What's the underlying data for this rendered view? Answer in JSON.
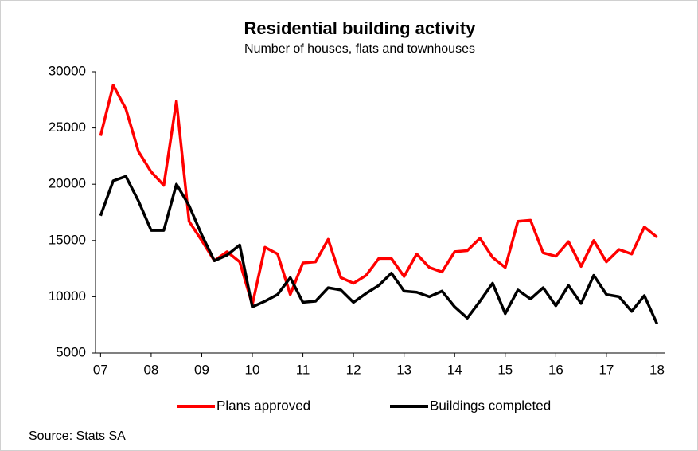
{
  "chart_data": {
    "type": "line",
    "title": "Residential building activity",
    "subtitle": "Number of houses, flats and townhouses",
    "source": "Source: Stats SA",
    "x": [
      2007,
      2007.25,
      2007.5,
      2007.75,
      2008,
      2008.25,
      2008.5,
      2008.75,
      2009,
      2009.25,
      2009.5,
      2009.75,
      2010,
      2010.25,
      2010.5,
      2010.75,
      2011,
      2011.25,
      2011.5,
      2011.75,
      2012,
      2012.25,
      2012.5,
      2012.75,
      2013,
      2013.25,
      2013.5,
      2013.75,
      2014,
      2014.25,
      2014.5,
      2014.75,
      2015,
      2015.25,
      2015.5,
      2015.75,
      2016,
      2016.25,
      2016.5,
      2016.75,
      2017,
      2017.25,
      2017.5,
      2017.75,
      2018
    ],
    "series": [
      {
        "name": "Plans approved",
        "color": "#ff0000",
        "values": [
          24300,
          28800,
          26700,
          22900,
          21100,
          19900,
          27400,
          16700,
          15000,
          13200,
          14000,
          13100,
          9300,
          14400,
          13800,
          10200,
          13000,
          13100,
          15100,
          11700,
          11200,
          11900,
          13400,
          13400,
          11800,
          13800,
          12600,
          12200,
          14000,
          14100,
          15200,
          13500,
          12600,
          16700,
          16800,
          13900,
          13600,
          14900,
          12700,
          15000,
          13100,
          14200,
          13800,
          16200,
          15300
        ]
      },
      {
        "name": "Buildings completed",
        "color": "#000000",
        "values": [
          17200,
          20300,
          20700,
          18500,
          15900,
          15900,
          20000,
          18100,
          15500,
          13200,
          13700,
          14600,
          9100,
          9600,
          10200,
          11700,
          9500,
          9600,
          10800,
          10600,
          9500,
          10300,
          11000,
          12100,
          10500,
          10400,
          10000,
          10500,
          9100,
          8100,
          9600,
          11200,
          8500,
          10600,
          9800,
          10800,
          9200,
          11000,
          9400,
          11900,
          10200,
          10000,
          8700,
          10100,
          7600
        ]
      }
    ],
    "xlim": [
      2006.9,
      2018.15
    ],
    "xticks": [
      {
        "value": 2007,
        "label": "07"
      },
      {
        "value": 2008,
        "label": "08"
      },
      {
        "value": 2009,
        "label": "09"
      },
      {
        "value": 2010,
        "label": "10"
      },
      {
        "value": 2011,
        "label": "11"
      },
      {
        "value": 2012,
        "label": "12"
      },
      {
        "value": 2013,
        "label": "13"
      },
      {
        "value": 2014,
        "label": "14"
      },
      {
        "value": 2015,
        "label": "15"
      },
      {
        "value": 2016,
        "label": "16"
      },
      {
        "value": 2017,
        "label": "17"
      },
      {
        "value": 2018,
        "label": "18"
      }
    ],
    "ylim": [
      5000,
      30000
    ],
    "yticks": [
      5000,
      10000,
      15000,
      20000,
      25000,
      30000
    ],
    "grid": false,
    "legend": "bottom"
  }
}
